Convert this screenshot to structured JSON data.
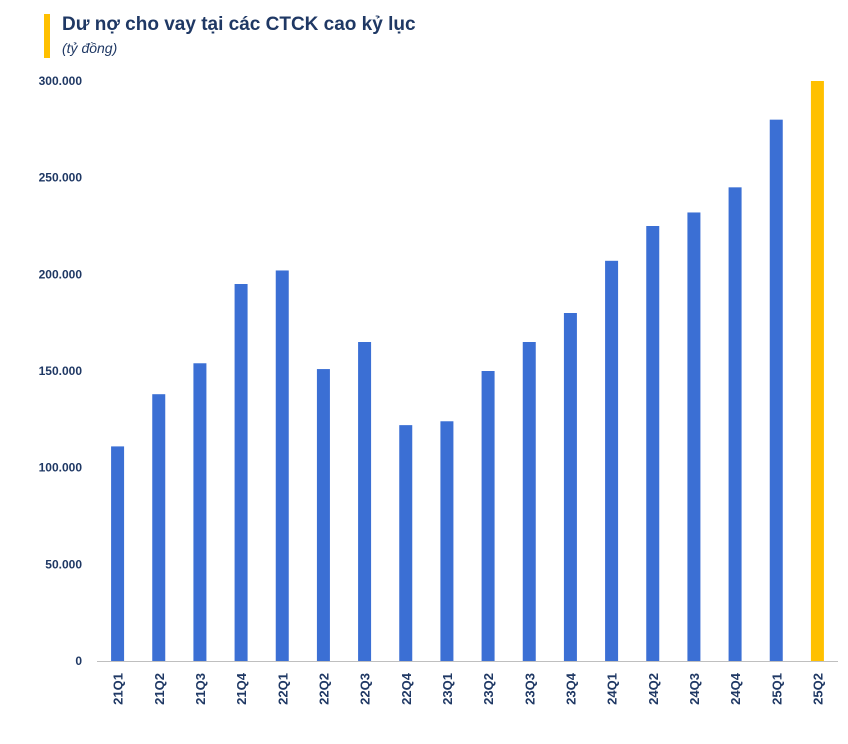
{
  "chart_data": {
    "type": "bar",
    "title": "Dư nợ cho vay tại các CTCK cao kỷ lục",
    "subtitle": "(tỷ đồng)",
    "categories": [
      "21Q1",
      "21Q2",
      "21Q3",
      "21Q4",
      "22Q1",
      "22Q2",
      "22Q3",
      "22Q4",
      "23Q1",
      "23Q2",
      "23Q3",
      "23Q4",
      "24Q1",
      "24Q2",
      "24Q3",
      "24Q4",
      "25Q1",
      "25Q2"
    ],
    "values": [
      111000,
      138000,
      154000,
      195000,
      202000,
      151000,
      165000,
      122000,
      124000,
      150000,
      165000,
      180000,
      207000,
      225000,
      232000,
      245000,
      280000,
      300000
    ],
    "ylim": [
      0,
      300000
    ],
    "yticks": [
      0,
      50000,
      100000,
      150000,
      200000,
      250000,
      300000
    ],
    "ytick_labels": [
      "0",
      "50.000",
      "100.000",
      "150.000",
      "200.000",
      "250.000",
      "300.000"
    ],
    "xlabel": "",
    "ylabel": "",
    "grid": false,
    "colors": {
      "bar": "#3B6FD4",
      "highlight": "#FFC000",
      "axis": "#BFBFBF",
      "title_accent": "#FFC000"
    },
    "highlight_index": 17
  }
}
